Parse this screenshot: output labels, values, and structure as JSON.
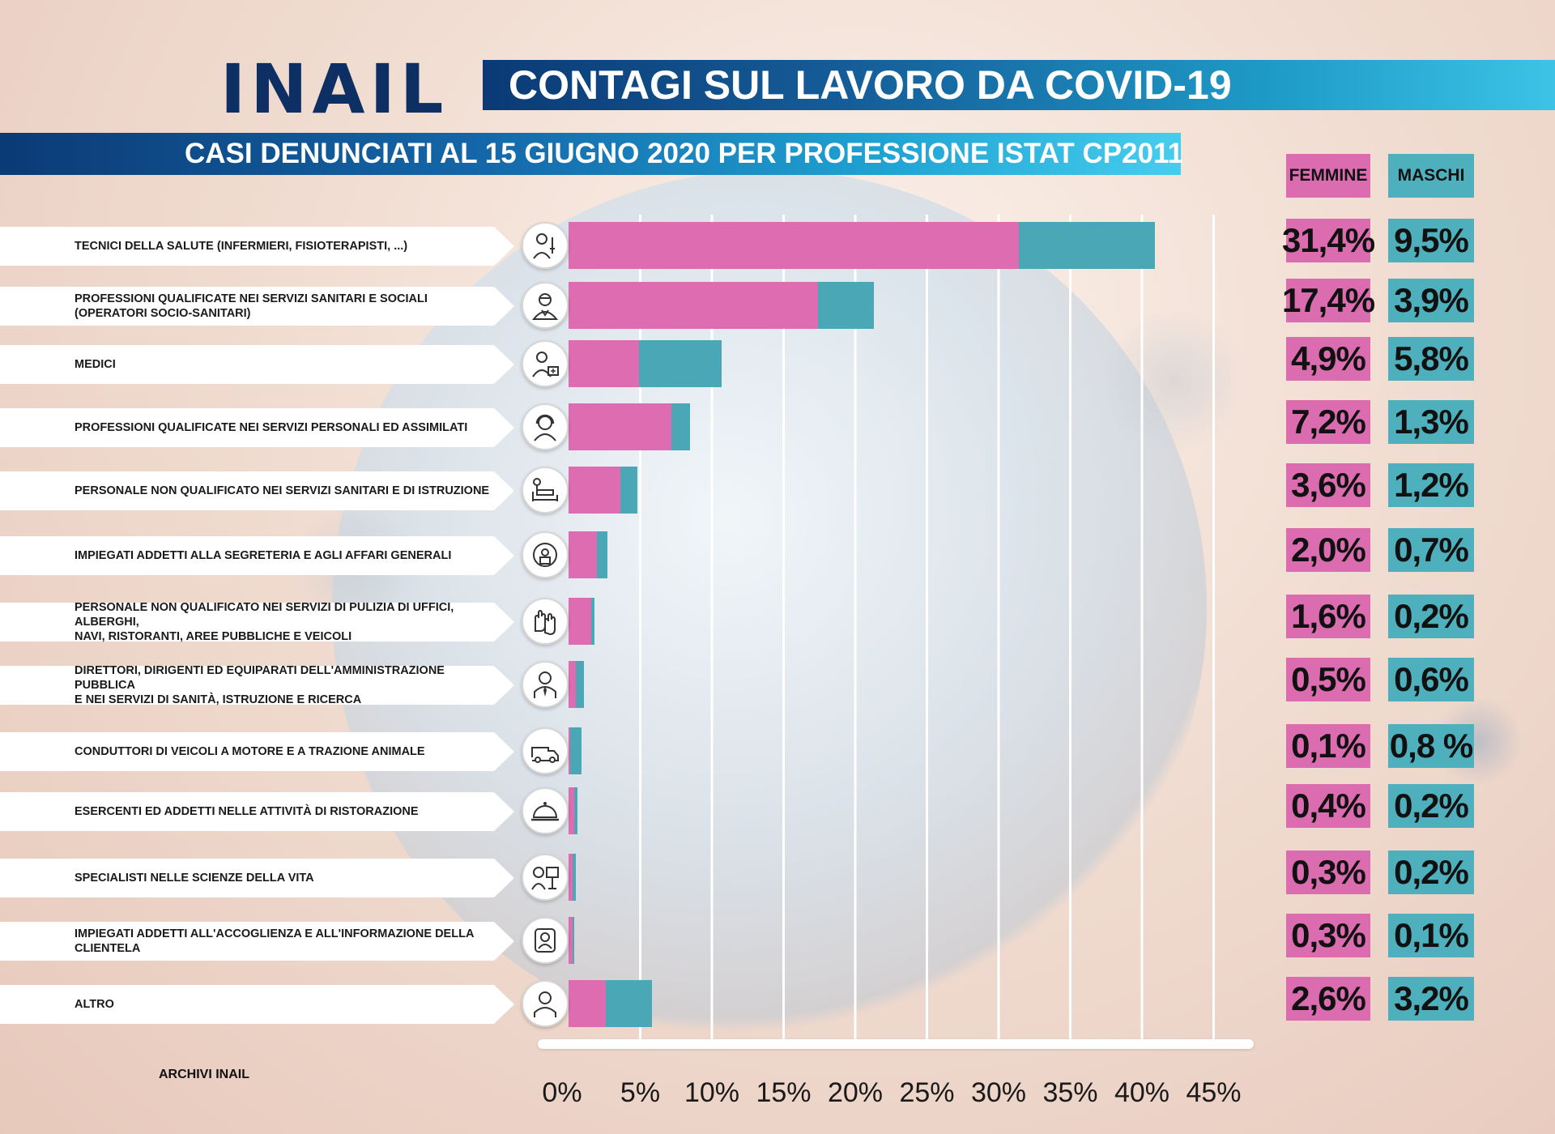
{
  "header": {
    "logo": "INAIL",
    "title": "CONTAGI SUL LAVORO DA COVID-19",
    "subtitle": "CASI DENUNCIATI AL 15 GIUGNO 2020 PER PROFESSIONE ISTAT CP2011"
  },
  "columns": {
    "female": "FEMMINE",
    "male": "MASCHI"
  },
  "source": "ARCHIVI INAIL",
  "colors": {
    "female": "#de6cb1",
    "male": "#4aa7b5",
    "brand_dark": "#0e2f63",
    "brand_light": "#3cc3e6"
  },
  "chart_data": {
    "type": "bar",
    "orientation": "horizontal",
    "stacked": true,
    "xlim": [
      0,
      45
    ],
    "x_ticks": [
      "0%",
      "5%",
      "10%",
      "15%",
      "20%",
      "25%",
      "30%",
      "35%",
      "40%",
      "45%"
    ],
    "grid": true,
    "categories": [
      "TECNICI DELLA SALUTE (INFERMIERI, FISIOTERAPISTI, ...)",
      "PROFESSIONI QUALIFICATE NEI SERVIZI SANITARI E SOCIALI (OPERATORI SOCIO-SANITARI)",
      "MEDICI",
      "PROFESSIONI QUALIFICATE NEI SERVIZI PERSONALI ED ASSIMILATI",
      "PERSONALE NON QUALIFICATO NEI SERVIZI  SANITARI E DI ISTRUZIONE",
      "IMPIEGATI ADDETTI ALLA SEGRETERIA E AGLI AFFARI GENERALI",
      "PERSONALE NON QUALIFICATO NEI SERVIZI DI PULIZIA DI UFFICI, ALBERGHI, NAVI, RISTORANTI, AREE PUBBLICHE E VEICOLI",
      "DIRETTORI, DIRIGENTI ED EQUIPARATI DELL'AMMINISTRAZIONE PUBBLICA E NEI SERVIZI DI SANITÀ, ISTRUZIONE E RICERCA",
      "CONDUTTORI DI VEICOLI A MOTORE E A TRAZIONE ANIMALE",
      "ESERCENTI ED ADDETTI NELLE ATTIVITÀ DI RISTORAZIONE",
      "SPECIALISTI NELLE SCIENZE DELLA VITA",
      "IMPIEGATI ADDETTI ALL'ACCOGLIENZA E ALL'INFORMAZIONE DELLA CLIENTELA",
      "ALTRO"
    ],
    "series": [
      {
        "name": "FEMMINE",
        "values": [
          31.4,
          17.4,
          4.9,
          7.2,
          3.6,
          2.0,
          1.6,
          0.5,
          0.1,
          0.4,
          0.3,
          0.3,
          2.6
        ],
        "labels": [
          "31,4%",
          "17,4%",
          "4,9%",
          "7,2%",
          "3,6%",
          "2,0%",
          "1,6%",
          "0,5%",
          "0,1%",
          "0,4%",
          "0,3%",
          "0,3%",
          "2,6%"
        ]
      },
      {
        "name": "MASCHI",
        "values": [
          9.5,
          3.9,
          5.8,
          1.3,
          1.2,
          0.7,
          0.2,
          0.6,
          0.8,
          0.2,
          0.2,
          0.1,
          3.2
        ],
        "labels": [
          "9,5%",
          "3,9%",
          "5,8%",
          "1,3%",
          "1,2%",
          "0,7%",
          "0,2%",
          "0,6%",
          "0,8 %",
          "0,2%",
          "0,2%",
          "0,1%",
          "3,2%"
        ]
      }
    ]
  },
  "rows": [
    {
      "label": "TECNICI DELLA SALUTE (INFERMIERI, FISIOTERAPISTI, ...)",
      "icon": "nurse-icon"
    },
    {
      "label": " PROFESSIONI QUALIFICATE NEI SERVIZI SANITARI E SOCIALI\n(OPERATORI SOCIO-SANITARI)",
      "icon": "healthcare-worker-icon"
    },
    {
      "label": "MEDICI",
      "icon": "doctor-icon"
    },
    {
      "label": " PROFESSIONI QUALIFICATE NEI SERVIZI PERSONALI ED ASSIMILATI",
      "icon": "headset-operator-icon"
    },
    {
      "label": "PERSONALE NON QUALIFICATO NEI SERVIZI  SANITARI E DI ISTRUZIONE",
      "icon": "hospital-bed-icon"
    },
    {
      "label": "IMPIEGATI ADDETTI ALLA SEGRETERIA E AGLI AFFARI GENERALI",
      "icon": "clerk-icon"
    },
    {
      "label": "PERSONALE NON QUALIFICATO NEI SERVIZI DI PULIZIA DI UFFICI, ALBERGHI,\nNAVI, RISTORANTI, AREE PUBBLICHE E VEICOLI",
      "icon": "gloves-icon"
    },
    {
      "label": "DIRETTORI, DIRIGENTI ED EQUIPARATI DELL'AMMINISTRAZIONE PUBBLICA\nE NEI SERVIZI DI SANITÀ, ISTRUZIONE E RICERCA",
      "icon": "manager-icon"
    },
    {
      "label": "CONDUTTORI DI VEICOLI A MOTORE E A TRAZIONE ANIMALE",
      "icon": "van-icon"
    },
    {
      "label": "ESERCENTI ED ADDETTI NELLE ATTIVITÀ DI RISTORAZIONE",
      "icon": "cloche-icon"
    },
    {
      "label": "SPECIALISTI NELLE SCIENZE DELLA VITA",
      "icon": "scientist-icon"
    },
    {
      "label": "IMPIEGATI ADDETTI ALL'ACCOGLIENZA E ALL'INFORMAZIONE DELLA CLIENTELA",
      "icon": "receptionist-icon"
    },
    {
      "label": "ALTRO",
      "icon": "person-icon"
    }
  ]
}
